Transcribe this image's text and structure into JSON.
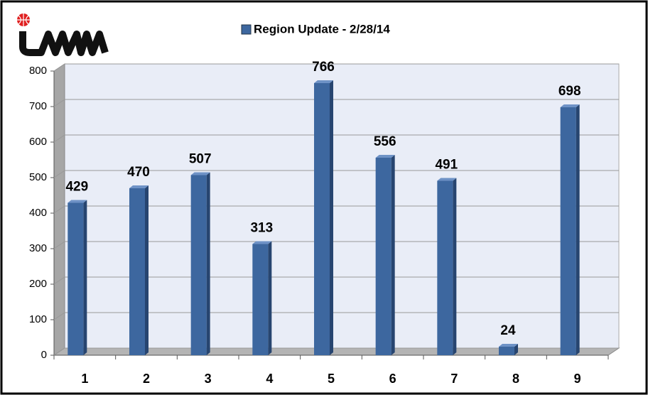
{
  "chart_data": {
    "type": "bar3d",
    "categories": [
      "1",
      "2",
      "3",
      "4",
      "5",
      "6",
      "7",
      "8",
      "9"
    ],
    "series": [
      {
        "name": "Region Update - 2/28/14",
        "color": "#3d679f",
        "values": [
          429,
          470,
          507,
          313,
          766,
          556,
          491,
          24,
          698
        ]
      }
    ],
    "ylim": [
      0,
      800
    ],
    "yticks": [
      0,
      100,
      200,
      300,
      400,
      500,
      600,
      700,
      800
    ],
    "grid": true,
    "legend": "top"
  }
}
